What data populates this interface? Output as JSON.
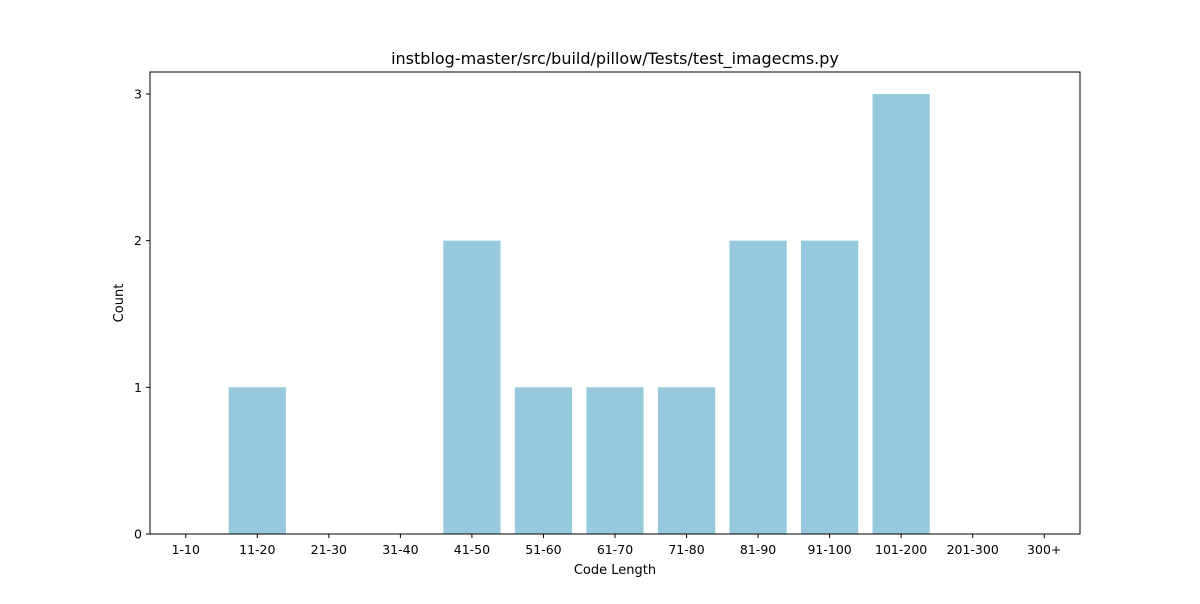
{
  "chart_data": {
    "type": "bar",
    "title": "instblog-master/src/build/pillow/Tests/test_imagecms.py",
    "xlabel": "Code Length",
    "ylabel": "Count",
    "categories": [
      "1-10",
      "11-20",
      "21-30",
      "31-40",
      "41-50",
      "51-60",
      "61-70",
      "71-80",
      "81-90",
      "91-100",
      "101-200",
      "201-300",
      "300+"
    ],
    "values": [
      0,
      1,
      0,
      0,
      2,
      1,
      1,
      1,
      2,
      2,
      3,
      0,
      0
    ],
    "ylim": [
      0,
      3.15
    ],
    "yticks": [
      0,
      1,
      2,
      3
    ],
    "grid": false,
    "legend": "none",
    "bar_color": "#96c9dd",
    "axis_color": "#000000"
  }
}
